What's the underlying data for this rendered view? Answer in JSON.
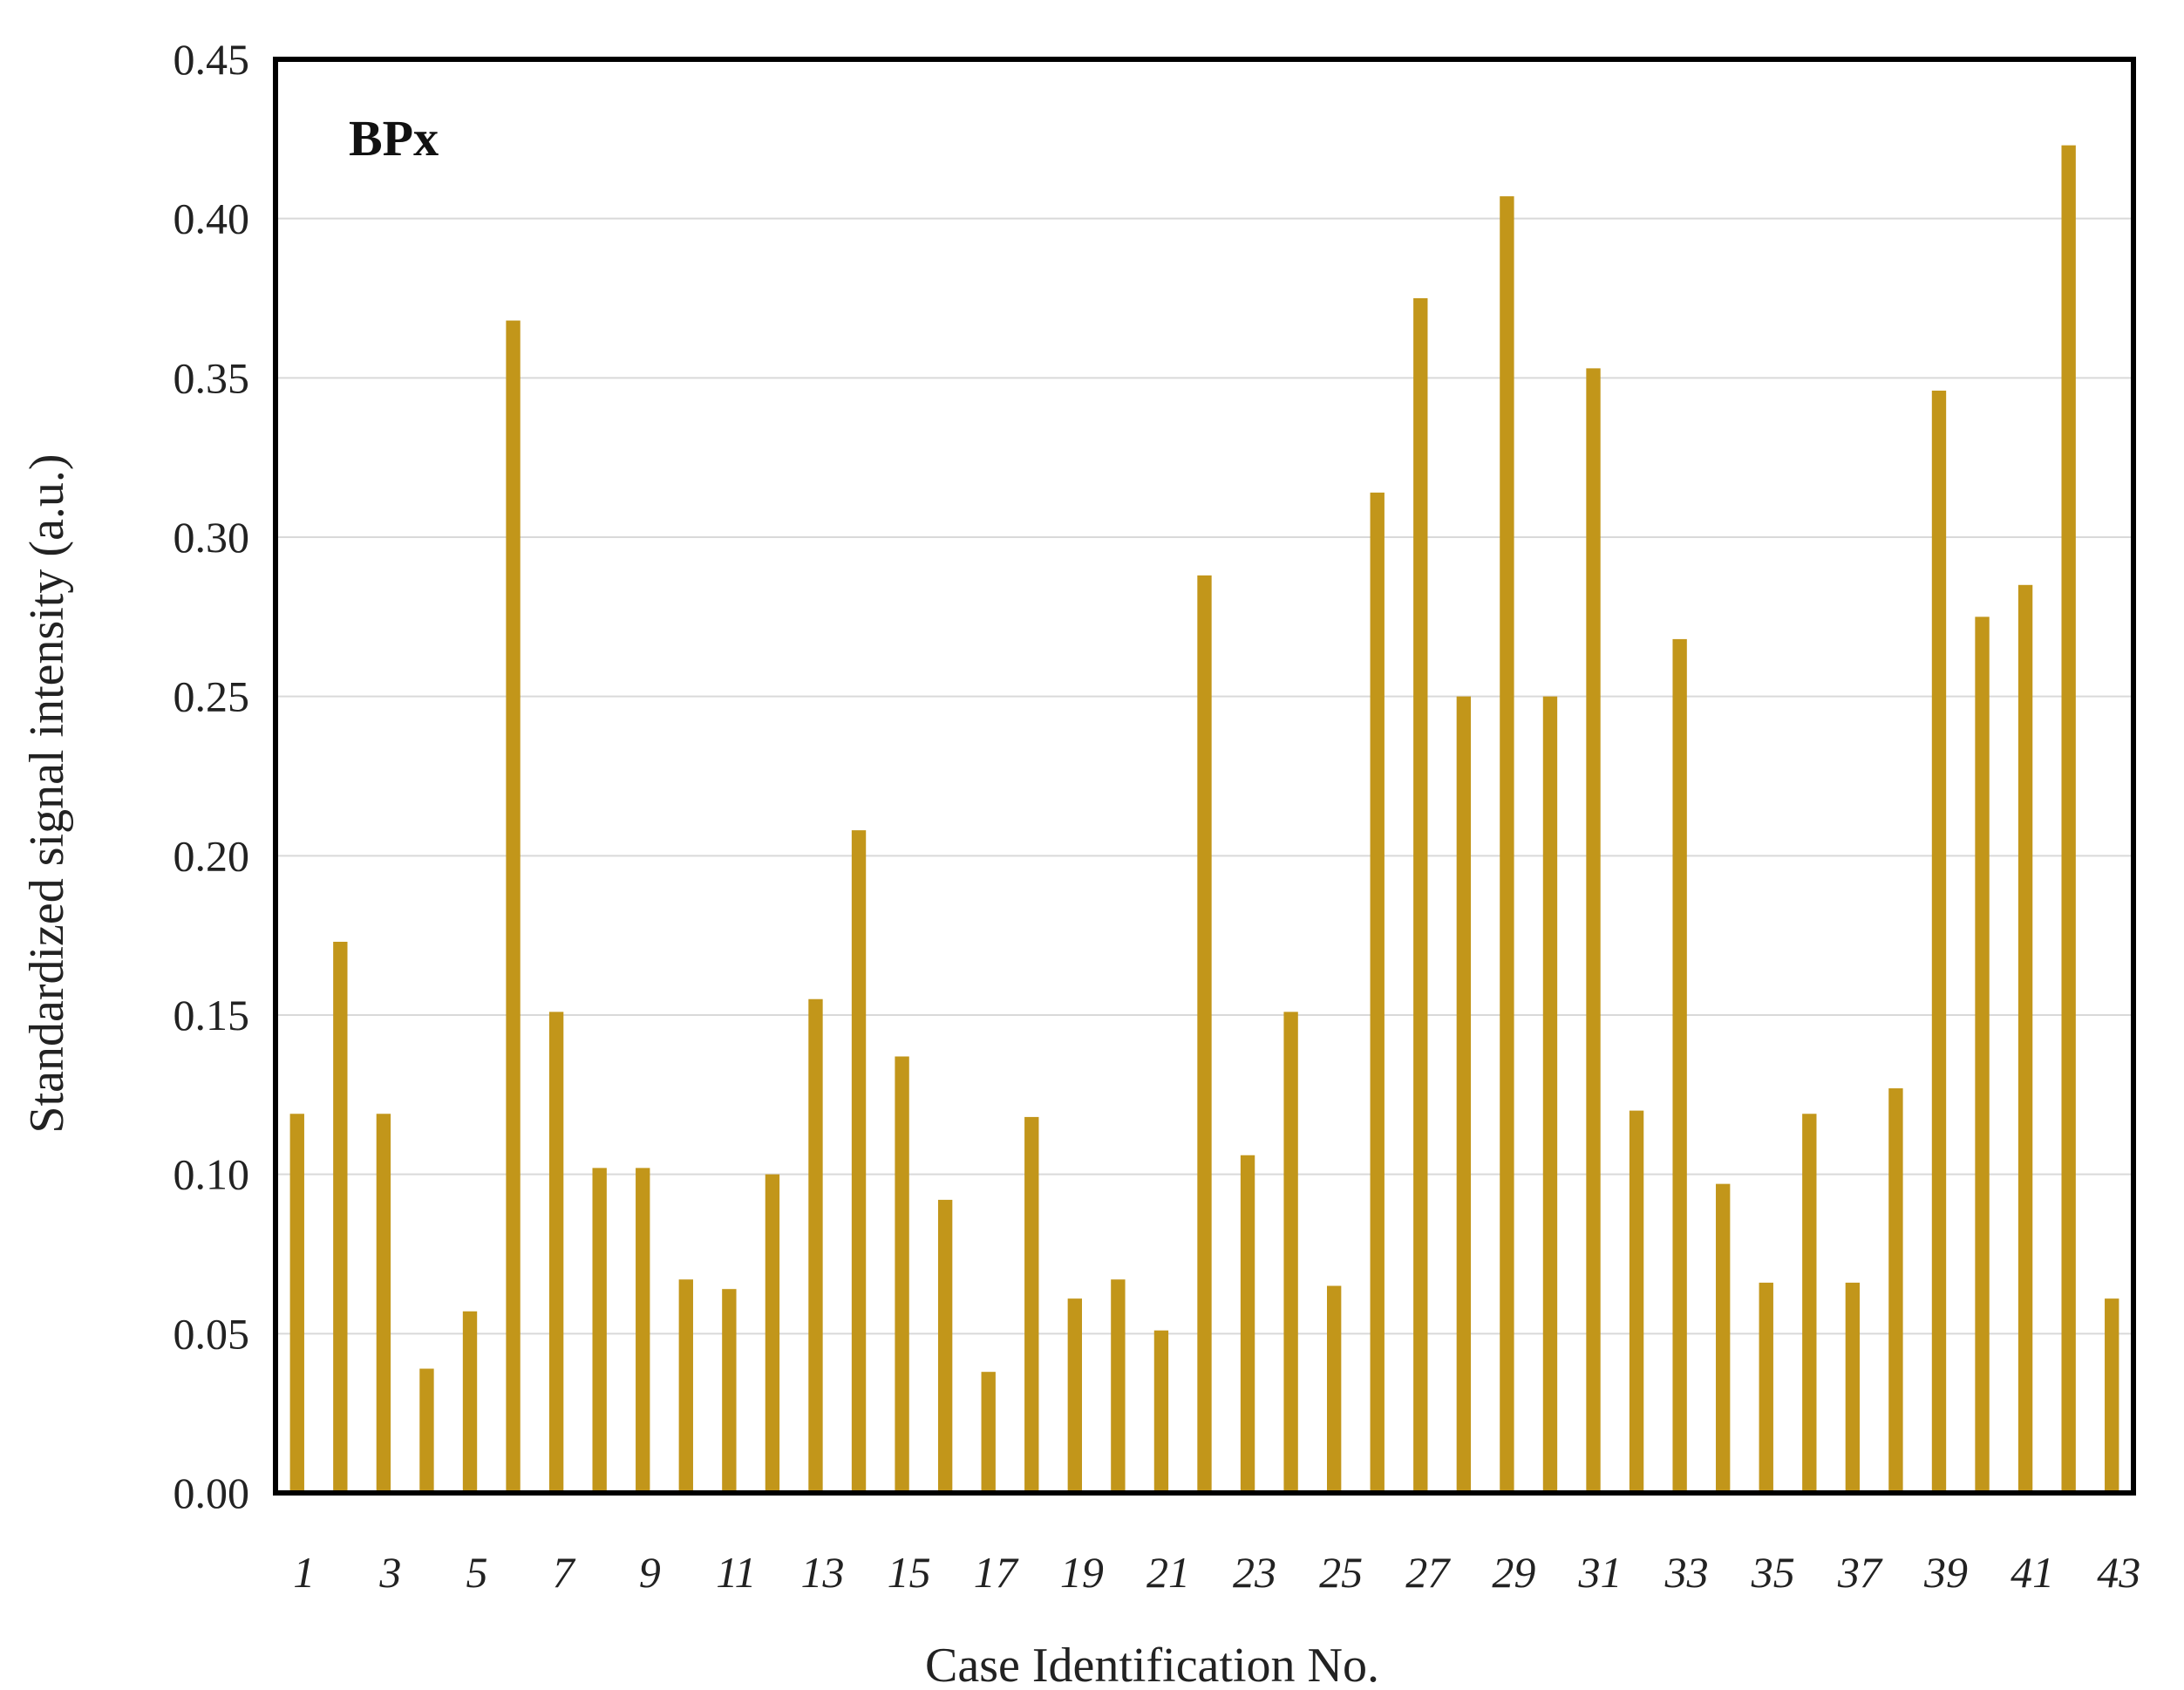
{
  "chart_data": {
    "type": "bar",
    "panel_label": "BPx",
    "xlabel": "Case Identification No.",
    "ylabel": "Standardized signal intensity (a.u.)",
    "ylim": [
      0,
      0.45
    ],
    "yticks": [
      "0.00",
      "0.05",
      "0.10",
      "0.15",
      "0.20",
      "0.25",
      "0.30",
      "0.35",
      "0.40",
      "0.45"
    ],
    "grid": true,
    "bar_color": "#C2961A",
    "categories": [
      "1",
      "2",
      "3",
      "4",
      "5",
      "6",
      "7",
      "8",
      "9",
      "10",
      "11",
      "12",
      "13",
      "14",
      "15",
      "16",
      "17",
      "18",
      "19",
      "20",
      "21",
      "22",
      "23",
      "24",
      "25",
      "26",
      "27",
      "28",
      "29",
      "30",
      "31",
      "32",
      "33",
      "34",
      "35",
      "36",
      "37",
      "38",
      "39",
      "40",
      "41",
      "42",
      "43"
    ],
    "xtick_labels": [
      "1",
      "3",
      "5",
      "7",
      "9",
      "11",
      "13",
      "15",
      "17",
      "19",
      "21",
      "23",
      "25",
      "27",
      "29",
      "31",
      "33",
      "35",
      "37",
      "39",
      "41",
      "43"
    ],
    "values": [
      0.119,
      0.173,
      0.119,
      0.039,
      0.057,
      0.368,
      0.151,
      0.102,
      0.102,
      0.067,
      0.064,
      0.1,
      0.155,
      0.208,
      0.137,
      0.092,
      0.038,
      0.118,
      0.061,
      0.067,
      0.051,
      0.288,
      0.106,
      0.151,
      0.065,
      0.314,
      0.375,
      0.25,
      0.407,
      0.25,
      0.353,
      0.12,
      0.268,
      0.097,
      0.066,
      0.119,
      0.066,
      0.127,
      0.346,
      0.275,
      0.285,
      0.423,
      0.061
    ]
  }
}
